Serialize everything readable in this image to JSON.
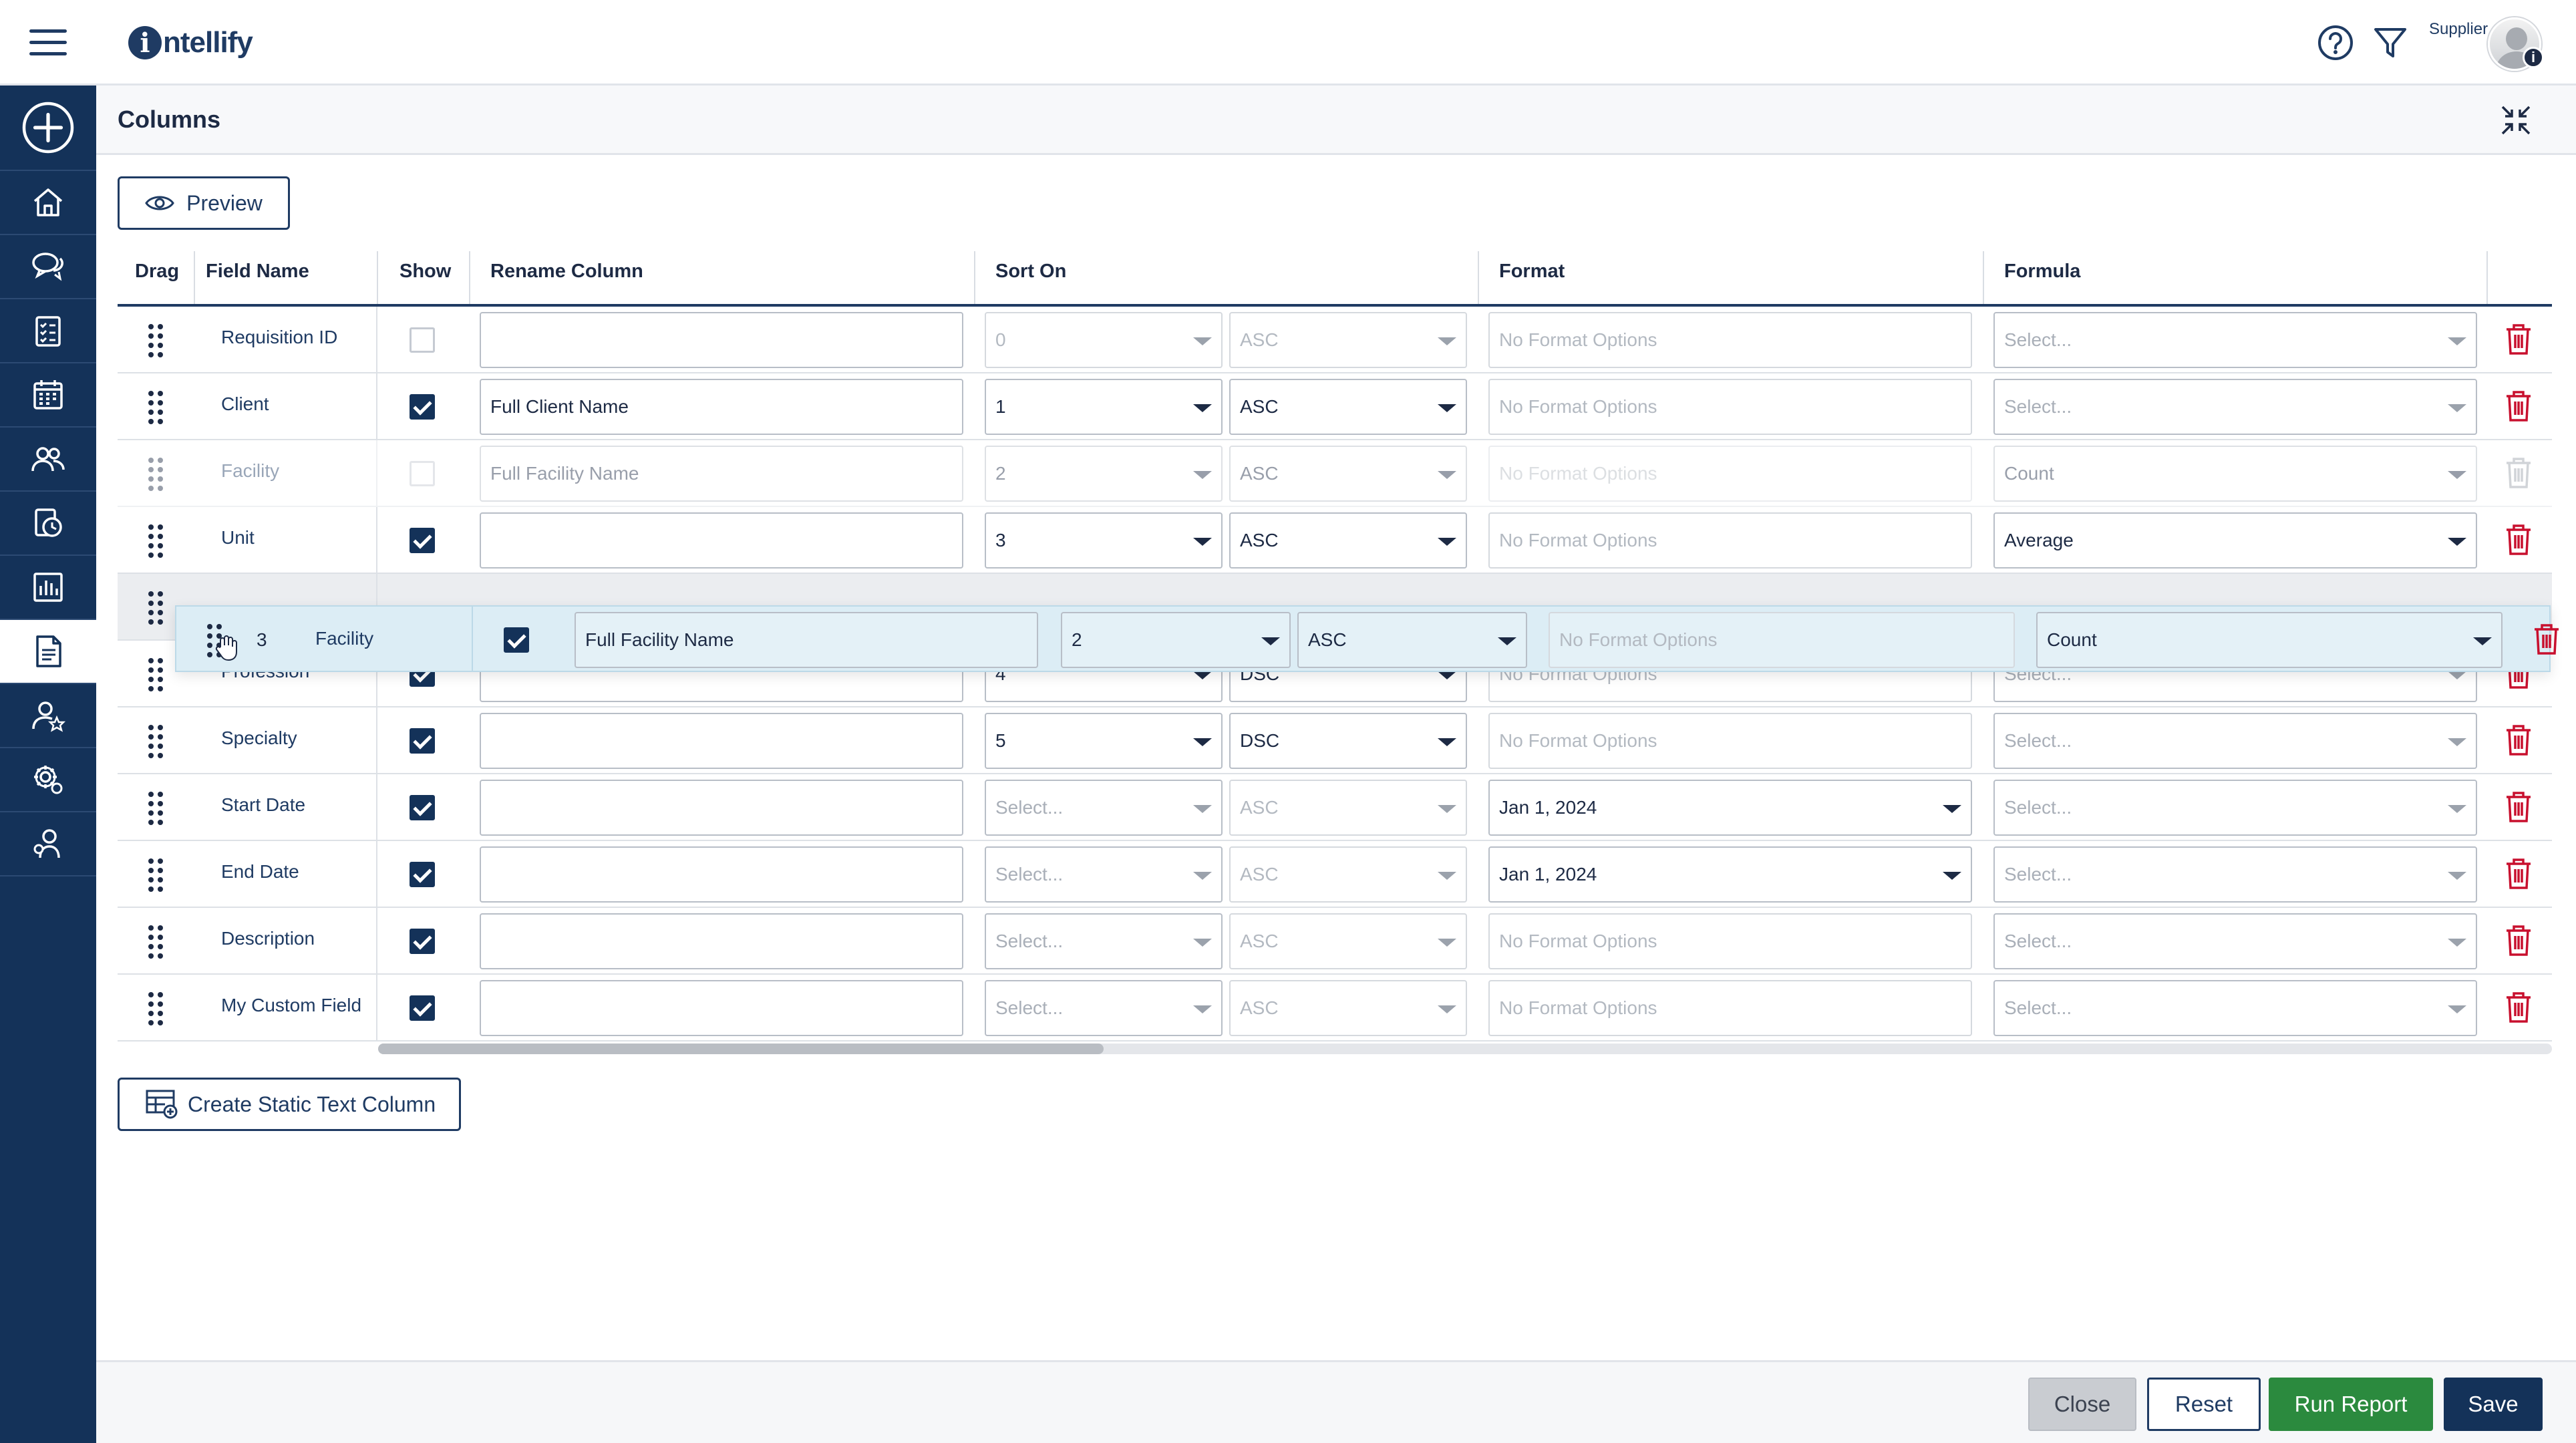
{
  "app": {
    "brand": "ntellify",
    "brand_initial": "i",
    "user_role": "Supplier",
    "avatar_badge": "i"
  },
  "sidebar": {
    "items": [
      {
        "icon": "plus-circle-icon"
      },
      {
        "icon": "home-icon"
      },
      {
        "icon": "chat-icon"
      },
      {
        "icon": "checklist-icon"
      },
      {
        "icon": "calendar-icon"
      },
      {
        "icon": "people-icon"
      },
      {
        "icon": "clock-dollar-icon"
      },
      {
        "icon": "bar-chart-icon"
      },
      {
        "icon": "report-icon",
        "active": true
      },
      {
        "icon": "user-star-icon"
      },
      {
        "icon": "settings-gear-icon"
      },
      {
        "icon": "user-settings-icon"
      }
    ]
  },
  "panel": {
    "title": "Columns",
    "preview_label": "Preview",
    "create_static_label": "Create Static Text Column"
  },
  "table": {
    "headers": {
      "drag": "Drag",
      "field_name": "Field Name",
      "show": "Show",
      "rename": "Rename Column",
      "sort_on": "Sort On",
      "format": "Format",
      "formula": "Formula"
    },
    "rows": [
      {
        "field": "Requisition ID",
        "show": false,
        "rename": "",
        "rename_placeholder": "",
        "sort": "0",
        "order": "ASC",
        "format": "No Format Options",
        "formula": "Select...",
        "state": "inactive-sort"
      },
      {
        "field": "Client",
        "show": true,
        "rename": "Full Client Name",
        "sort": "1",
        "order": "ASC",
        "format": "No Format Options",
        "formula": "Select..."
      },
      {
        "field": "Facility",
        "show": true,
        "rename": "Full Facility Name",
        "sort": "2",
        "order": "ASC",
        "format": "No Format Options",
        "formula": "Count",
        "state": "disabled"
      },
      {
        "field": "Unit",
        "show": true,
        "rename": "",
        "sort": "3",
        "order": "ASC",
        "format": "No Format Options",
        "formula": "Average"
      },
      {
        "field": "",
        "state": "drop-placeholder"
      },
      {
        "field": "Profession",
        "show": true,
        "rename": "",
        "sort": "4",
        "order": "DSC",
        "format": "No Format Options",
        "formula": "Select...",
        "state": "partially-covered"
      },
      {
        "field": "Specialty",
        "show": true,
        "rename": "",
        "sort": "5",
        "order": "DSC",
        "format": "No Format Options",
        "formula": "Select..."
      },
      {
        "field": "Start Date",
        "show": true,
        "rename": "",
        "sort": "Select...",
        "order": "ASC",
        "format": "Jan 1, 2024",
        "formula": "Select..."
      },
      {
        "field": "End Date",
        "show": true,
        "rename": "",
        "sort": "Select...",
        "order": "ASC",
        "format": "Jan 1, 2024",
        "formula": "Select..."
      },
      {
        "field": "Description",
        "show": true,
        "rename": "",
        "sort": "Select...",
        "order": "ASC",
        "format": "No Format Options",
        "formula": "Select..."
      },
      {
        "field": "My Custom Field",
        "show": true,
        "rename": "",
        "sort": "Select...",
        "order": "ASC",
        "format": "No Format Options",
        "formula": "Select..."
      }
    ],
    "dragging": {
      "index": "3",
      "field": "Facility",
      "show": true,
      "rename": "Full Facility Name",
      "sort": "2",
      "order": "ASC",
      "format": "No Format Options",
      "formula": "Count"
    }
  },
  "footer": {
    "close": "Close",
    "reset": "Reset",
    "run_report": "Run Report",
    "save": "Save"
  },
  "colors": {
    "primary": "#143259",
    "accent_green": "#2b8a3e",
    "danger": "#c8102e",
    "drag_highlight": "#dcedf5"
  }
}
